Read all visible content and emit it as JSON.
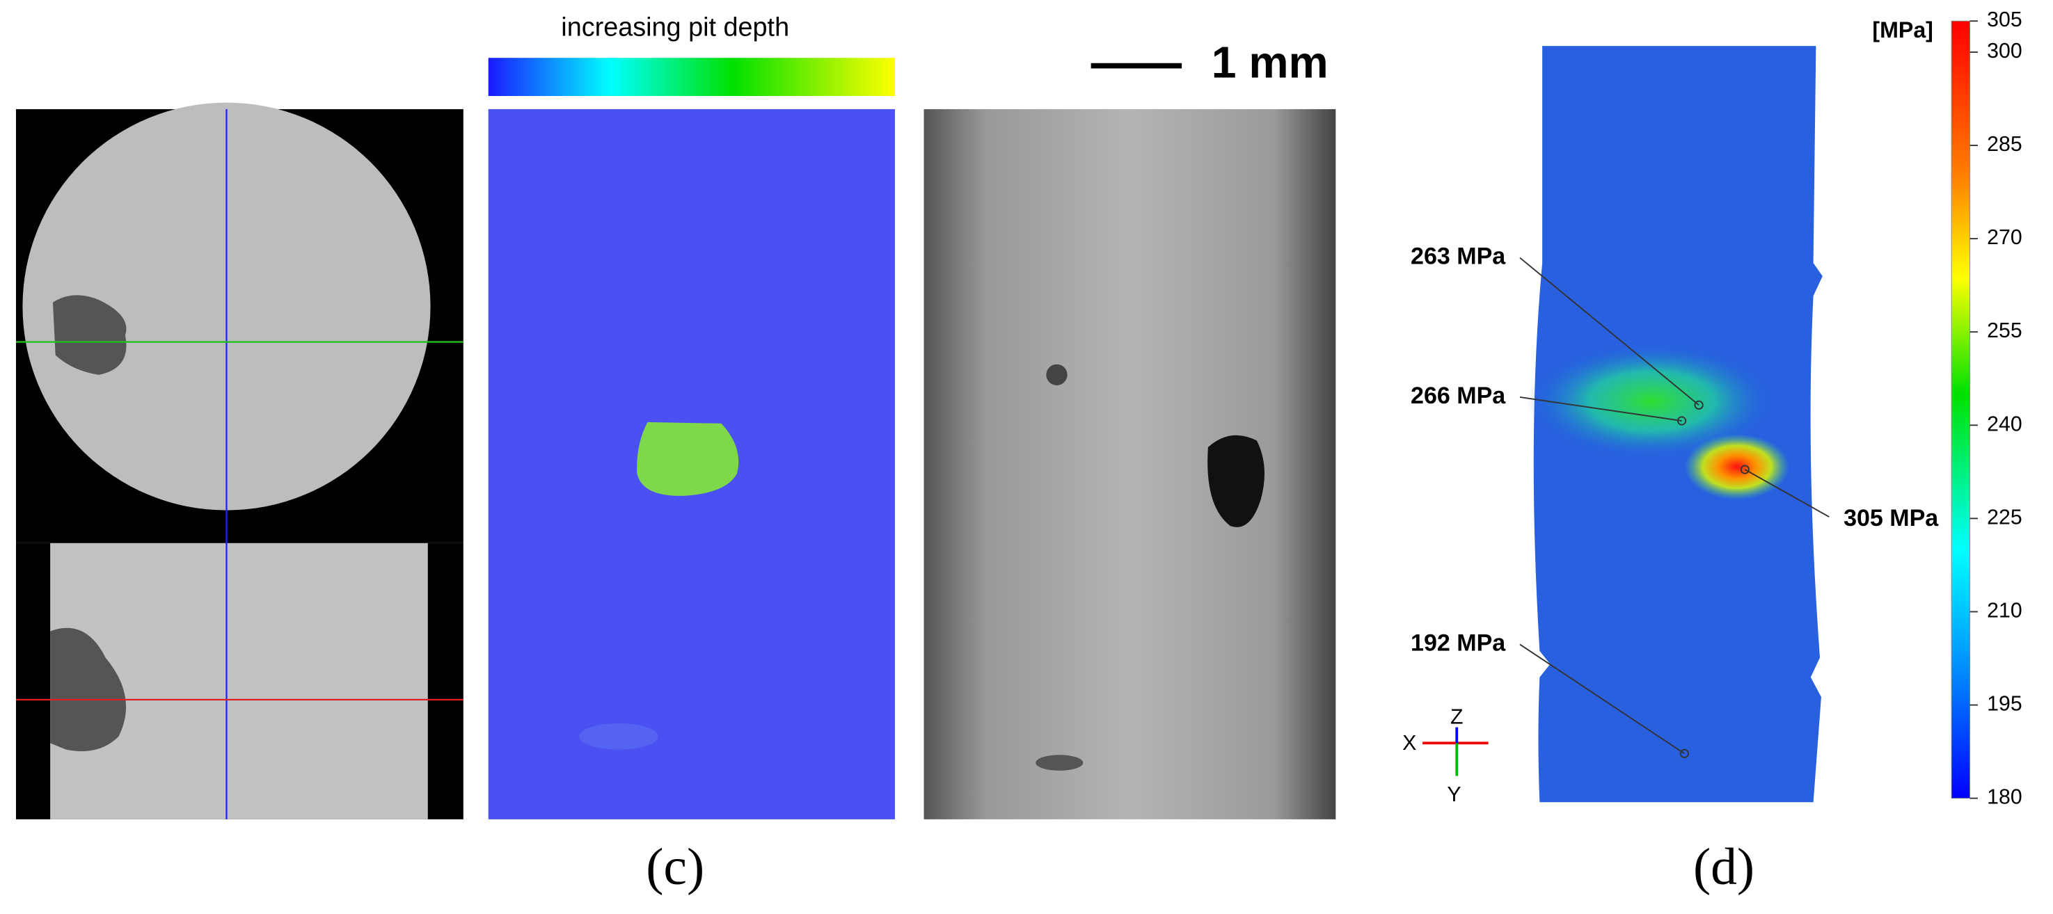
{
  "panel_c": {
    "legend_label": "increasing pit depth",
    "scale_bar": "1 mm",
    "caption": "(c)"
  },
  "panel_d": {
    "colorbar": {
      "unit": "[MPa]",
      "range": [
        180,
        305
      ],
      "ticks": [
        305,
        300,
        285,
        270,
        255,
        240,
        225,
        210,
        195,
        180
      ]
    },
    "annotations": [
      "263 MPa",
      "266 MPa",
      "305 MPa",
      "192 MPa"
    ],
    "axes": {
      "z": "Z",
      "x": "X",
      "y": "Y"
    },
    "caption": "(d)"
  }
}
